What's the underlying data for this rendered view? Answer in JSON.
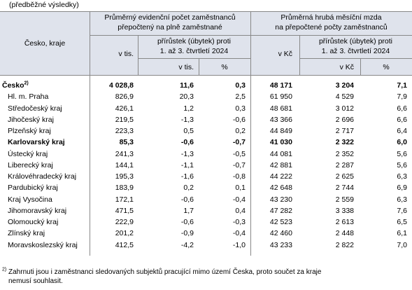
{
  "caption": "(předběžné výsledky)",
  "header": {
    "region_label": "Česko, kraje",
    "group1_title_line1": "Průměrný evidenční počet zaměstnanců",
    "group1_title_line2": "přepočtený na plně zaměstnané",
    "group2_title_line1": "Průměrná hrubá měsíční mzda",
    "group2_title_line2": "na přepočtené počty zaměstnanců",
    "g1_value_unit": "v tis.",
    "g1_change_line1": "přírůstek (úbytek) proti",
    "g1_change_line2": "1. až 3. čtvrtletí 2024",
    "g1_change_unit": "v tis.",
    "g1_change_pct": "%",
    "g2_value_unit": "v Kč",
    "g2_change_line1": "přírůstek (úbytek) proti",
    "g2_change_line2": "1. až 3. čtvrtletí 2024",
    "g2_change_unit": "v Kč",
    "g2_change_pct": "%"
  },
  "rows": [
    {
      "name": "Česko",
      "sup": "2)",
      "bold": true,
      "emp": "4 028,8",
      "emp_chg": "11,6",
      "emp_pct": "0,3",
      "wage": "48 171",
      "wage_chg": "3 204",
      "wage_pct": "7,1"
    },
    {
      "name": "Hl. m. Praha",
      "emp": "826,9",
      "emp_chg": "20,3",
      "emp_pct": "2,5",
      "wage": "61 950",
      "wage_chg": "4 529",
      "wage_pct": "7,9"
    },
    {
      "name": "Středočeský kraj",
      "emp": "426,1",
      "emp_chg": "1,2",
      "emp_pct": "0,3",
      "wage": "48 681",
      "wage_chg": "3 012",
      "wage_pct": "6,6"
    },
    {
      "name": "Jihočeský kraj",
      "emp": "219,5",
      "emp_chg": "-1,3",
      "emp_pct": "-0,6",
      "wage": "43 366",
      "wage_chg": "2 696",
      "wage_pct": "6,6"
    },
    {
      "name": "Plzeňský kraj",
      "emp": "223,3",
      "emp_chg": "0,5",
      "emp_pct": "0,2",
      "wage": "44 849",
      "wage_chg": "2 717",
      "wage_pct": "6,4"
    },
    {
      "name": "Karlovarský kraj",
      "bold": true,
      "emp": "85,3",
      "emp_chg": "-0,6",
      "emp_pct": "-0,7",
      "wage": "41 030",
      "wage_chg": "2 322",
      "wage_pct": "6,0"
    },
    {
      "name": "Ústecký kraj",
      "emp": "241,3",
      "emp_chg": "-1,3",
      "emp_pct": "-0,5",
      "wage": "44 081",
      "wage_chg": "2 352",
      "wage_pct": "5,6"
    },
    {
      "name": "Liberecký kraj",
      "emp": "144,1",
      "emp_chg": "-1,1",
      "emp_pct": "-0,7",
      "wage": "42 881",
      "wage_chg": "2 287",
      "wage_pct": "5,6"
    },
    {
      "name": "Královéhradecký kraj",
      "emp": "195,3",
      "emp_chg": "-1,6",
      "emp_pct": "-0,8",
      "wage": "44 222",
      "wage_chg": "2 625",
      "wage_pct": "6,3"
    },
    {
      "name": "Pardubický kraj",
      "emp": "183,9",
      "emp_chg": "0,2",
      "emp_pct": "0,1",
      "wage": "42 648",
      "wage_chg": "2 744",
      "wage_pct": "6,9"
    },
    {
      "name": "Kraj Vysočina",
      "emp": "172,1",
      "emp_chg": "-0,6",
      "emp_pct": "-0,4",
      "wage": "43 230",
      "wage_chg": "2 559",
      "wage_pct": "6,3"
    },
    {
      "name": "Jihomoravský kraj",
      "emp": "471,5",
      "emp_chg": "1,7",
      "emp_pct": "0,4",
      "wage": "47 282",
      "wage_chg": "3 338",
      "wage_pct": "7,6"
    },
    {
      "name": "Olomoucký kraj",
      "emp": "222,9",
      "emp_chg": "-0,6",
      "emp_pct": "-0,3",
      "wage": "42 523",
      "wage_chg": "2 613",
      "wage_pct": "6,5"
    },
    {
      "name": "Zlínský kraj",
      "emp": "201,2",
      "emp_chg": "-0,9",
      "emp_pct": "-0,4",
      "wage": "42 460",
      "wage_chg": "2 448",
      "wage_pct": "6,1"
    },
    {
      "name": "Moravskoslezský kraj",
      "emp": "412,5",
      "emp_chg": "-4,2",
      "emp_pct": "-1,0",
      "wage": "43 233",
      "wage_chg": "2 822",
      "wage_pct": "7,0"
    }
  ],
  "footnote": {
    "mark": "2)",
    "line1": "Zahrnuti jsou i zaměstnanci sledovaných subjektů pracující mimo území Česka, proto součet za kraje",
    "line2": "nemusí souhlasit."
  }
}
